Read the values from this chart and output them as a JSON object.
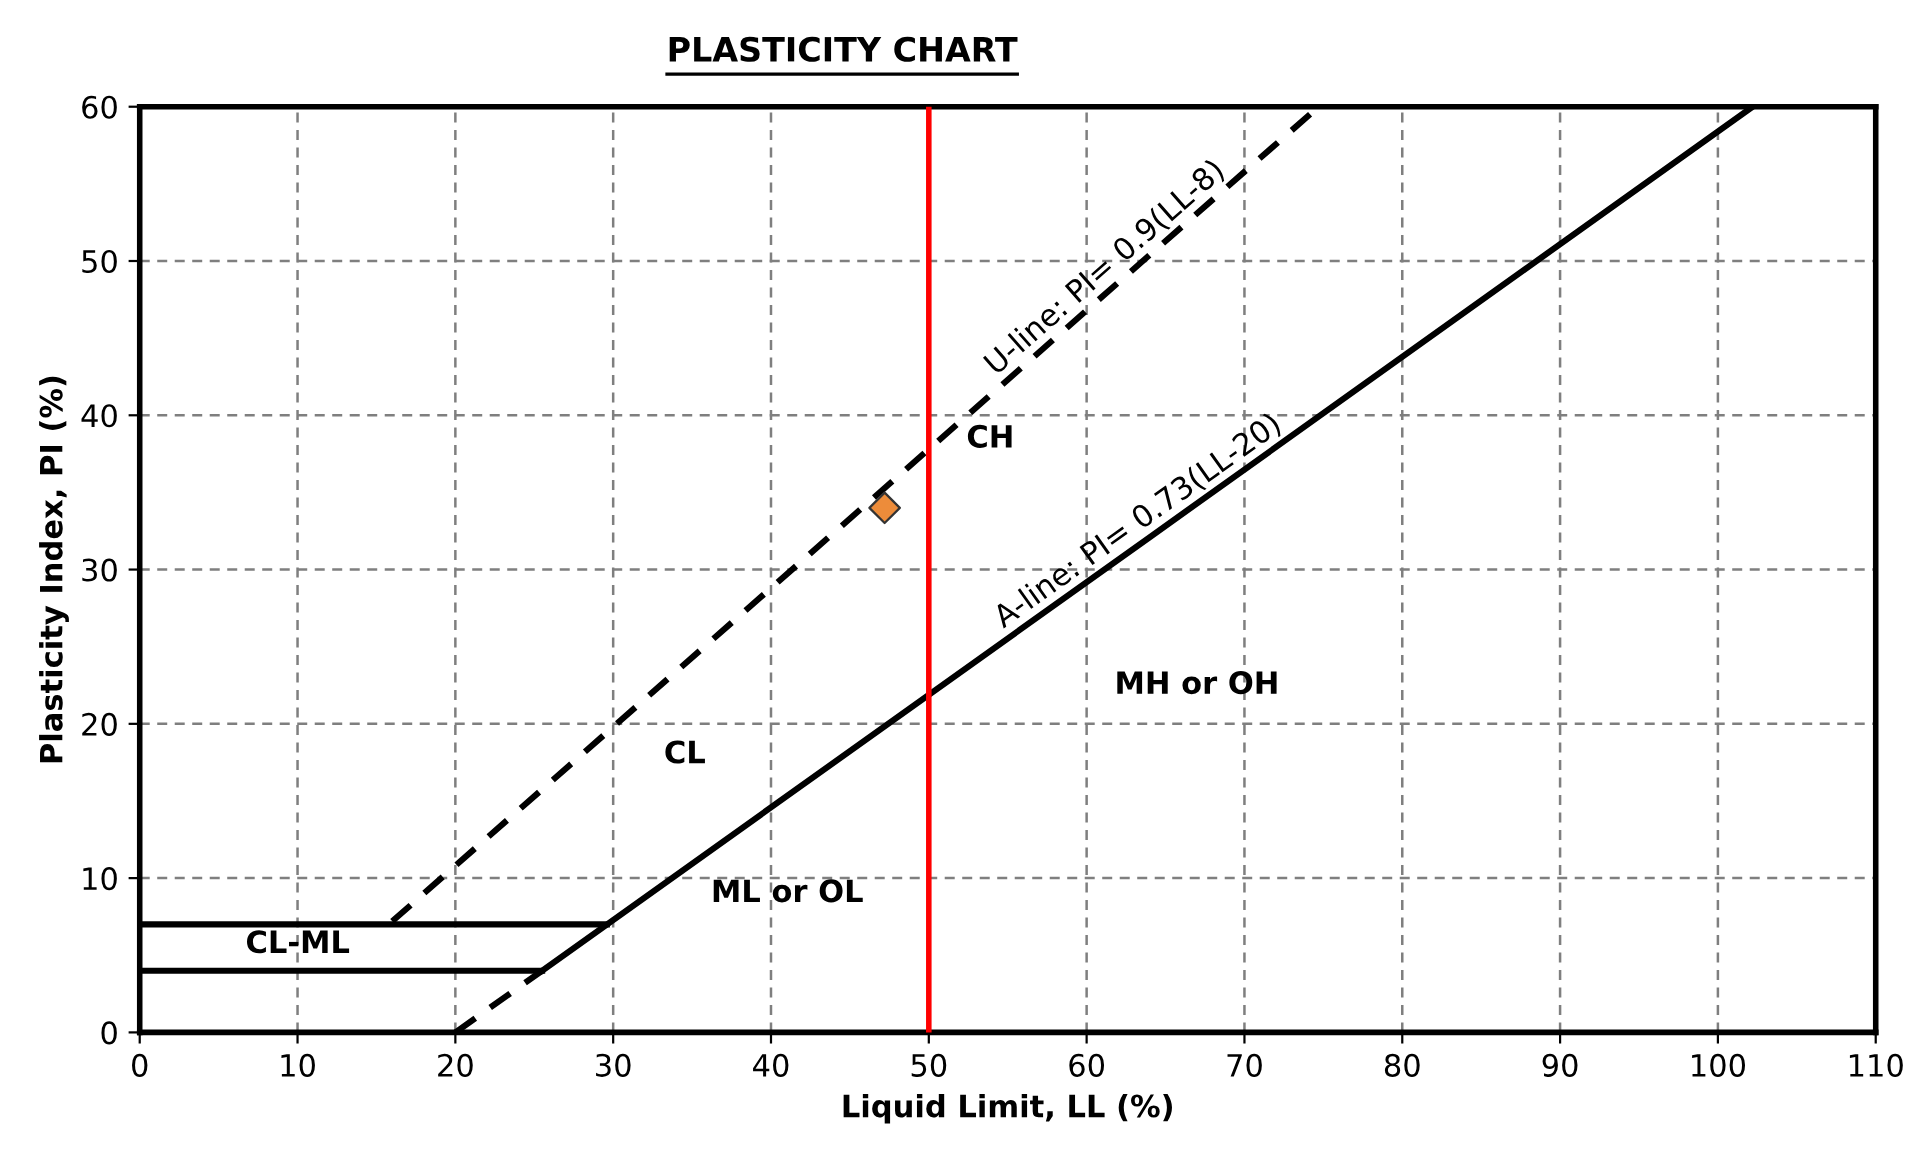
{
  "chart_data": {
    "type": "line",
    "title": "PLASTICITY CHART",
    "xlabel": "Liquid Limit, LL (%)",
    "ylabel": "Plasticity Index, PI (%)",
    "xlim": [
      0,
      110
    ],
    "xticks": [
      0,
      10,
      20,
      30,
      40,
      50,
      60,
      70,
      80,
      90,
      100,
      110
    ],
    "ylim": [
      0,
      60
    ],
    "yticks": [
      0,
      10,
      20,
      30,
      40,
      50,
      60
    ],
    "grid": true,
    "series": [
      {
        "name": "U-line: PI= 0.9(LL-8)",
        "color": "#000000",
        "line_style": "dashed",
        "x": [
          16,
          62,
          74.7
        ],
        "values": [
          7.2,
          48.6,
          60
        ]
      },
      {
        "name": "A-line: PI= 0.73(LL-20)",
        "color": "#000000",
        "line_style": "solid",
        "x": [
          25.5,
          64,
          102.2
        ],
        "values": [
          4,
          32.1,
          60
        ]
      },
      {
        "color": "#000000",
        "line_style": "dashed",
        "x": [
          20,
          25.5
        ],
        "values": [
          0,
          4
        ]
      },
      {
        "color": "#000000",
        "line_style": "solid",
        "x": [
          0,
          29.6
        ],
        "values": [
          7,
          7
        ]
      },
      {
        "color": "#000000",
        "line_style": "solid",
        "x": [
          0,
          25.5
        ],
        "values": [
          4,
          4
        ]
      },
      {
        "type": "scatter",
        "marker": "diamond",
        "color": "#ed8c3a",
        "x": [
          47.2
        ],
        "values": [
          34
        ]
      }
    ],
    "ref_lines": [
      {
        "axis": "x",
        "value": 50,
        "color": "#ff0000",
        "line_style": "solid"
      }
    ],
    "annotations": [
      "CH",
      "CL",
      "MH or OH",
      "ML or OL",
      "CL-ML"
    ]
  }
}
